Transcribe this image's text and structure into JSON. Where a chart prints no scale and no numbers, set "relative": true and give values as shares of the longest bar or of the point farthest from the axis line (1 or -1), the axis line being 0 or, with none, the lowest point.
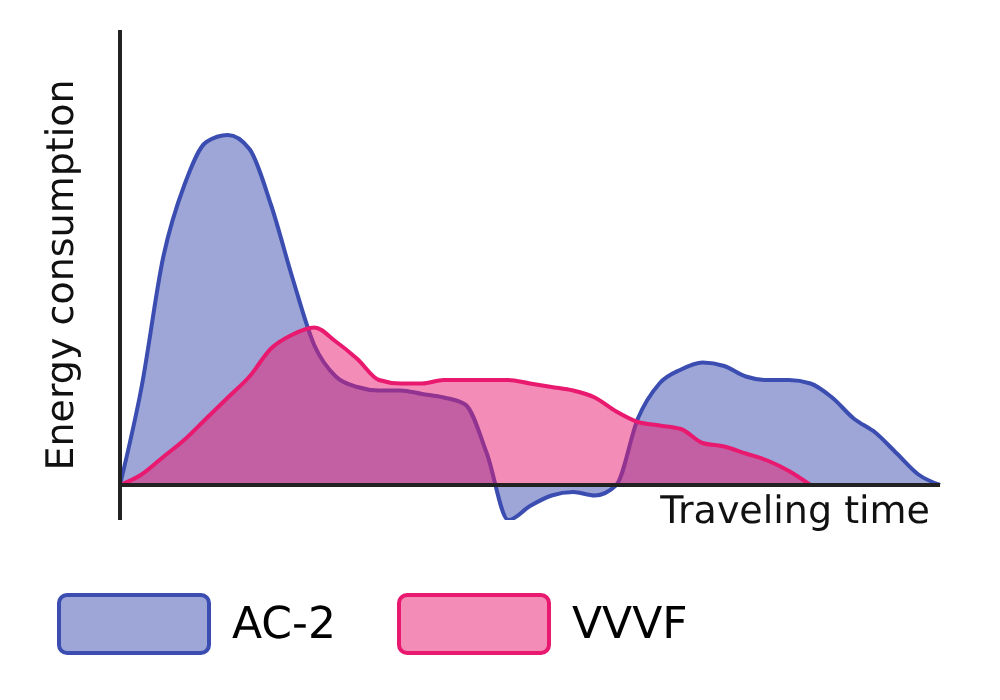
{
  "chart_data": {
    "type": "area",
    "relative": true,
    "xlabel": "Traveling time",
    "ylabel": "Energy consumption",
    "legend": "bottom",
    "categories": [
      null,
      null,
      null,
      null,
      null,
      null,
      null,
      null,
      null,
      null,
      null,
      null,
      null,
      null,
      null,
      null,
      null,
      null,
      null,
      null,
      null,
      null,
      null,
      null,
      null,
      null,
      null,
      null,
      null,
      null,
      null,
      null,
      null,
      null,
      null,
      null,
      null,
      null,
      null
    ],
    "series": [
      {
        "name": "AC-2",
        "color": "#3b4db0",
        "values": [
          0,
          0.28,
          0.65,
          0.86,
          0.98,
          1,
          0.96,
          0.8,
          0.59,
          0.4,
          0.31,
          0.28,
          0.27,
          0.27,
          0.26,
          0.25,
          0.23,
          0.09,
          -0.1,
          -0.06,
          -0.03,
          -0.02,
          -0.03,
          0,
          0.19,
          0.29,
          0.33,
          0.35,
          0.34,
          0.31,
          0.3,
          0.3,
          0.29,
          0.25,
          0.19,
          0.15,
          0.09,
          0.03,
          0
        ]
      },
      {
        "name": "VVVF",
        "color": "#e8196f",
        "values": [
          0,
          0.03,
          0.08,
          0.13,
          0.19,
          0.25,
          0.31,
          0.39,
          0.43,
          0.45,
          0.41,
          0.36,
          0.3,
          0.29,
          0.29,
          0.3,
          0.3,
          0.3,
          0.3,
          0.29,
          0.28,
          0.27,
          0.25,
          0.21,
          0.18,
          0.17,
          0.16,
          0.12,
          0.11,
          0.09,
          0.07,
          0.04,
          0,
          null,
          null,
          null,
          null,
          null,
          null
        ]
      }
    ]
  }
}
